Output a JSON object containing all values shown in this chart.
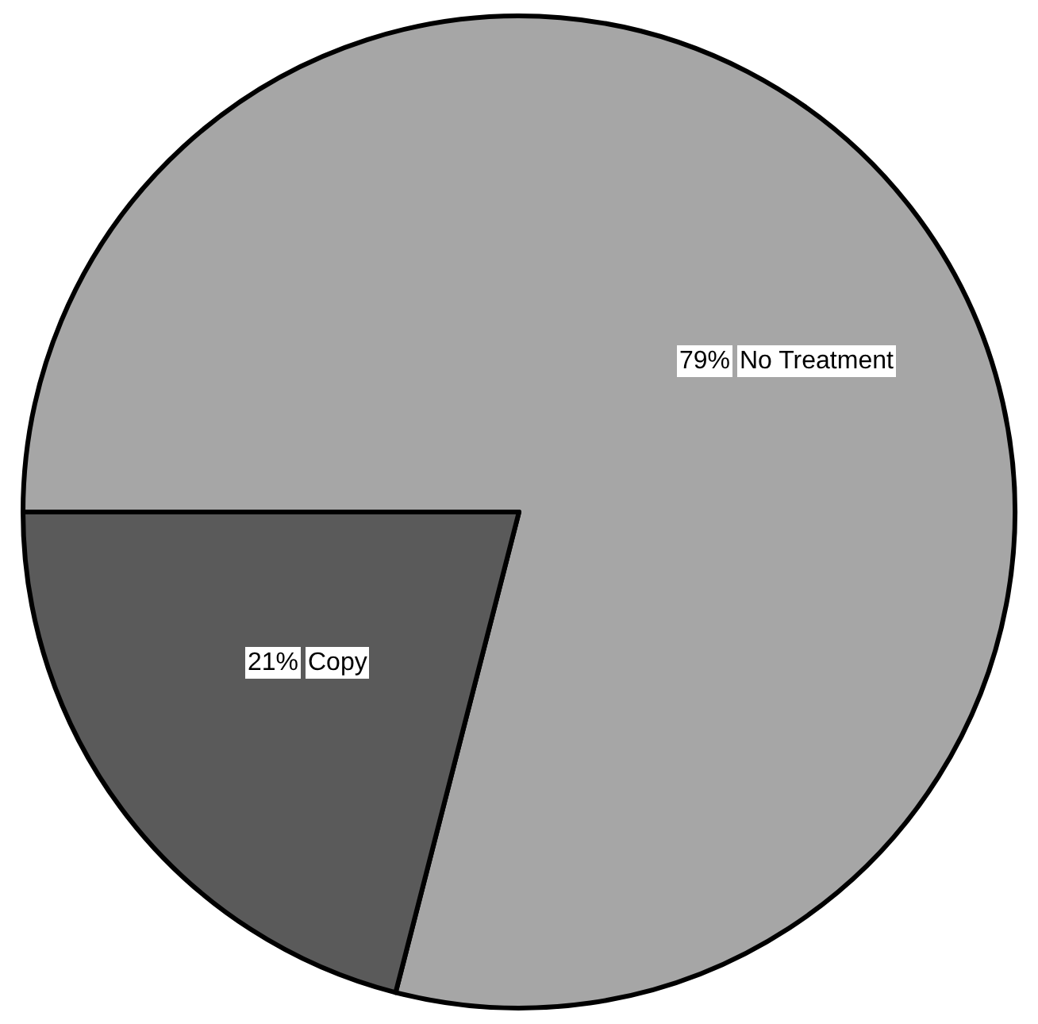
{
  "chart_data": {
    "type": "pie",
    "categories": [
      "No Treatment",
      "Copy"
    ],
    "values": [
      79,
      21
    ],
    "colors": [
      "#a6a6a6",
      "#5a5a5a"
    ],
    "value_labels": [
      "79%",
      "21%"
    ],
    "legend": false
  }
}
